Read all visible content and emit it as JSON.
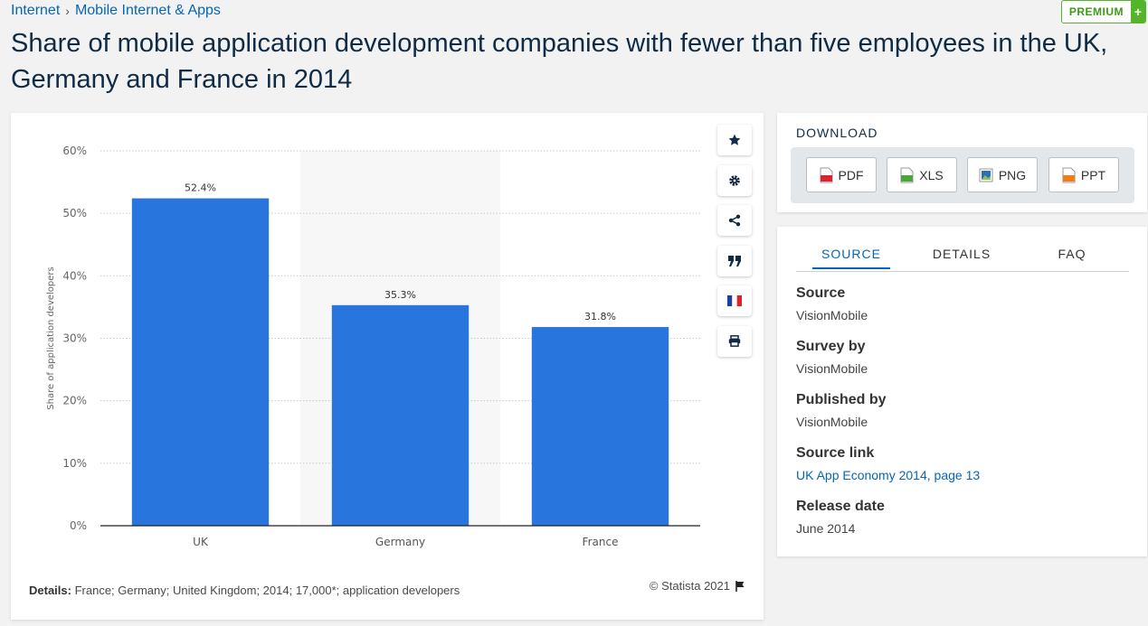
{
  "breadcrumb": {
    "items": [
      "Internet",
      "Mobile Internet & Apps"
    ],
    "separator": "›"
  },
  "premium": {
    "label": "PREMIUM",
    "plus": "+"
  },
  "page_title": "Share of mobile application development companies with fewer than five employees in the UK, Germany and France in 2014",
  "chart_data": {
    "type": "bar",
    "categories": [
      "UK",
      "Germany",
      "France"
    ],
    "values": [
      52.4,
      35.3,
      31.8
    ],
    "value_labels": [
      "52.4%",
      "35.3%",
      "31.8%"
    ],
    "ylabel": "Share of application developers",
    "ylim": [
      0,
      60
    ],
    "yticks": [
      0,
      10,
      20,
      30,
      40,
      50,
      60
    ],
    "ytick_labels": [
      "0%",
      "10%",
      "20%",
      "30%",
      "40%",
      "50%",
      "60%"
    ],
    "grid": true,
    "bar_color": "#2876dd",
    "highlight_band_category": "Germany"
  },
  "chart_footer": {
    "details_label": "Details:",
    "details_text": "France; Germany; United Kingdom; 2014; 17,000*; application developers",
    "copyright": "© Statista 2021"
  },
  "tools": [
    "star-icon",
    "gear-icon",
    "share-icon",
    "quote-icon",
    "france-flag-icon",
    "print-icon"
  ],
  "download": {
    "title": "DOWNLOAD",
    "buttons": [
      {
        "label": "PDF",
        "color": "#d9232e"
      },
      {
        "label": "XLS",
        "color": "#4aa63a"
      },
      {
        "label": "PNG",
        "color": "#2b6fc2"
      },
      {
        "label": "PPT",
        "color": "#ef7d1a"
      }
    ]
  },
  "info": {
    "tabs": [
      "SOURCE",
      "DETAILS",
      "FAQ"
    ],
    "active_tab": "SOURCE",
    "fields": [
      {
        "key": "Source",
        "value": "VisionMobile",
        "link": false
      },
      {
        "key": "Survey by",
        "value": "VisionMobile",
        "link": false
      },
      {
        "key": "Published by",
        "value": "VisionMobile",
        "link": false
      },
      {
        "key": "Source link",
        "value": "UK App Economy 2014, page 13",
        "link": true
      },
      {
        "key": "Release date",
        "value": "June 2014",
        "link": false
      }
    ]
  }
}
